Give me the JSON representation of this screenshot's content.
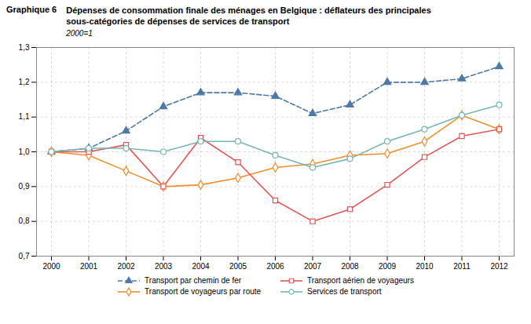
{
  "chart_data": {
    "type": "line",
    "title": "Dépenses de consommation finale des ménages en Belgique : déflateurs des principales\nsous-catégories de dépenses de services de transport",
    "subtitle": "2000=1",
    "annotations": [
      "Graphique 6"
    ],
    "x": [
      2000,
      2001,
      2002,
      2003,
      2004,
      2005,
      2006,
      2007,
      2008,
      2009,
      2010,
      2011,
      2012
    ],
    "xlim": [
      1999.6,
      2012.4
    ],
    "xticks": [
      2000,
      2001,
      2002,
      2003,
      2004,
      2005,
      2006,
      2007,
      2008,
      2009,
      2010,
      2011,
      2012
    ],
    "ylim": [
      0.7,
      1.3
    ],
    "yticks": [
      {
        "value": 0.7,
        "label": "0,7"
      },
      {
        "value": 0.8,
        "label": "0,8"
      },
      {
        "value": 0.9,
        "label": "0,9"
      },
      {
        "value": 1.0,
        "label": "1,0"
      },
      {
        "value": 1.1,
        "label": "1,1"
      },
      {
        "value": 1.2,
        "label": "1,2"
      },
      {
        "value": 1.3,
        "label": "1,3"
      }
    ],
    "grid": true,
    "legend": "bottom",
    "series": [
      {
        "name": "Transport par chemin de fer",
        "marker": "triangle",
        "line_style": "dashed",
        "values": [
          1.0,
          1.01,
          1.06,
          1.13,
          1.17,
          1.17,
          1.16,
          1.11,
          1.135,
          1.2,
          1.2,
          1.21,
          1.245
        ]
      },
      {
        "name": "Transport de voyageurs par route",
        "marker": "diamond",
        "line_style": "solid",
        "values": [
          1.0,
          0.99,
          0.945,
          0.9,
          0.905,
          0.925,
          0.955,
          0.965,
          0.99,
          0.995,
          1.03,
          1.105,
          1.065
        ]
      },
      {
        "name": "Transport aérien de voyageurs",
        "marker": "square",
        "line_style": "solid",
        "values": [
          1.0,
          1.0,
          1.02,
          0.9,
          1.04,
          0.97,
          0.86,
          0.8,
          0.835,
          0.905,
          0.985,
          1.045,
          1.065
        ]
      },
      {
        "name": "Services de transport",
        "marker": "circle",
        "line_style": "solid",
        "values": [
          1.0,
          1.01,
          1.01,
          1.0,
          1.03,
          1.03,
          0.99,
          0.955,
          0.98,
          1.03,
          1.065,
          1.105,
          1.135
        ]
      }
    ]
  }
}
